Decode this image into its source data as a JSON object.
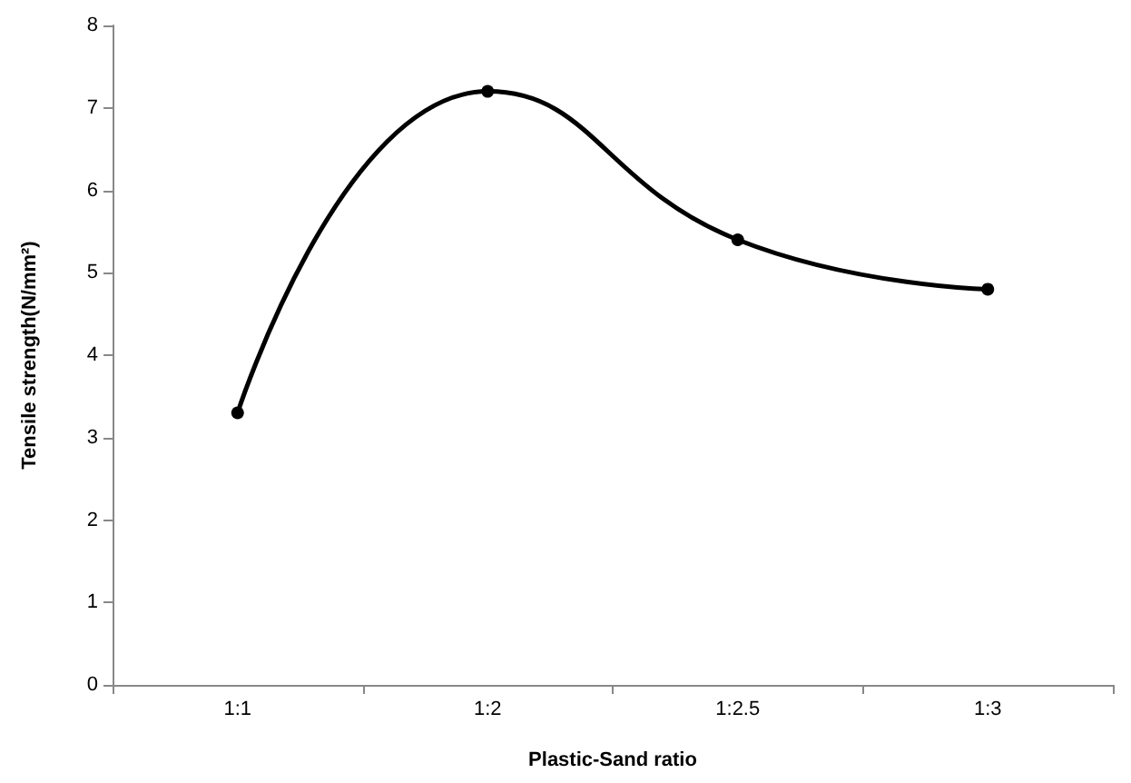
{
  "chart_data": {
    "type": "line",
    "xlabel": "Plastic-Sand ratio",
    "ylabel": "Tensile strength(N/mm²)",
    "categories": [
      "1:1",
      "1:2",
      "1:2.5",
      "1:3"
    ],
    "series": [
      {
        "color": "#000000",
        "values": [
          3.3,
          7.2,
          5.4,
          4.8
        ]
      }
    ],
    "ylim": [
      0,
      8
    ],
    "yticks": [
      0,
      1,
      2,
      3,
      4,
      5,
      6,
      7,
      8
    ],
    "grid": false,
    "marker": "circle",
    "line_style": "solid"
  }
}
